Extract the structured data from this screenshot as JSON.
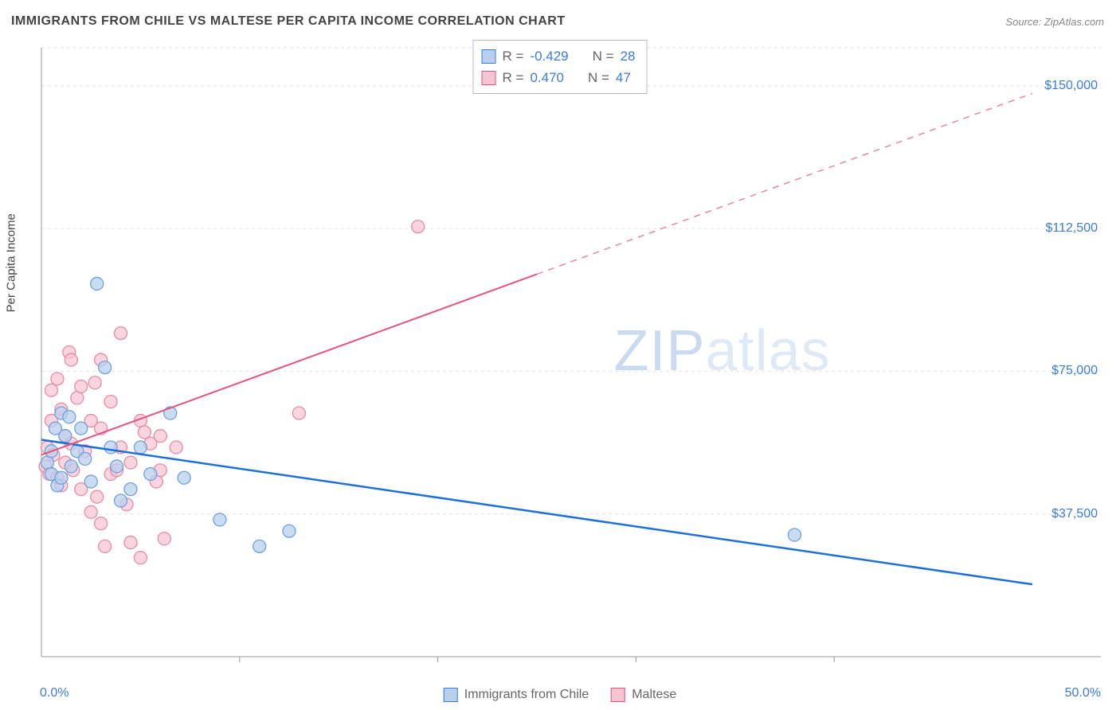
{
  "title": "IMMIGRANTS FROM CHILE VS MALTESE PER CAPITA INCOME CORRELATION CHART",
  "source": "Source: ZipAtlas.com",
  "ylabel": "Per Capita Income",
  "watermark_prefix": "ZIP",
  "watermark_suffix": "atlas",
  "chart": {
    "type": "scatter",
    "background_color": "#ffffff",
    "grid_color": "#e3e3e3",
    "axis_color": "#999999",
    "xlim": [
      0,
      50
    ],
    "ylim": [
      0,
      160000
    ],
    "xticks": [
      {
        "v": 0,
        "label": "0.0%"
      },
      {
        "v": 50,
        "label": "50.0%"
      }
    ],
    "xminor": [
      10,
      20,
      30,
      40
    ],
    "yticks": [
      {
        "v": 37500,
        "label": "$37,500"
      },
      {
        "v": 75000,
        "label": "$75,000"
      },
      {
        "v": 112500,
        "label": "$112,500"
      },
      {
        "v": 150000,
        "label": "$150,000"
      }
    ],
    "legend_top": [
      {
        "swatch_fill": "#b8d0ee",
        "swatch_stroke": "#3b7dd8",
        "r_label": "R = ",
        "r_val": "-0.429",
        "n_label": "N = ",
        "n_val": "28"
      },
      {
        "swatch_fill": "#f6c5d2",
        "swatch_stroke": "#e6537b",
        "r_label": "R = ",
        "r_val": " 0.470",
        "n_label": "N = ",
        "n_val": "47"
      }
    ],
    "legend_bottom": [
      {
        "swatch_fill": "#b8d0ee",
        "swatch_stroke": "#3b7dd8",
        "label": "Immigrants from Chile"
      },
      {
        "swatch_fill": "#f6c5d2",
        "swatch_stroke": "#e6537b",
        "label": "Maltese"
      }
    ],
    "series": [
      {
        "name": "chile",
        "marker_fill": "#b8d0ee",
        "marker_stroke": "#6fa0dd",
        "marker_r": 8,
        "marker_opacity": 0.75,
        "trend": {
          "x1": 0,
          "y1": 57000,
          "x2": 50,
          "y2": 19000,
          "solid_to_x": 50,
          "color": "#1f6fd8",
          "width": 2.5
        },
        "points": [
          {
            "x": 0.3,
            "y": 51000
          },
          {
            "x": 0.5,
            "y": 48000
          },
          {
            "x": 0.5,
            "y": 54000
          },
          {
            "x": 0.7,
            "y": 60000
          },
          {
            "x": 0.8,
            "y": 45000
          },
          {
            "x": 1.0,
            "y": 47000
          },
          {
            "x": 1.0,
            "y": 64000
          },
          {
            "x": 1.2,
            "y": 58000
          },
          {
            "x": 1.4,
            "y": 63000
          },
          {
            "x": 1.5,
            "y": 50000
          },
          {
            "x": 1.8,
            "y": 54000
          },
          {
            "x": 2.0,
            "y": 60000
          },
          {
            "x": 2.2,
            "y": 52000
          },
          {
            "x": 2.5,
            "y": 46000
          },
          {
            "x": 2.8,
            "y": 98000
          },
          {
            "x": 3.2,
            "y": 76000
          },
          {
            "x": 3.5,
            "y": 55000
          },
          {
            "x": 3.8,
            "y": 50000
          },
          {
            "x": 4.0,
            "y": 41000
          },
          {
            "x": 4.5,
            "y": 44000
          },
          {
            "x": 5.0,
            "y": 55000
          },
          {
            "x": 5.5,
            "y": 48000
          },
          {
            "x": 6.5,
            "y": 64000
          },
          {
            "x": 7.2,
            "y": 47000
          },
          {
            "x": 9.0,
            "y": 36000
          },
          {
            "x": 11.0,
            "y": 29000
          },
          {
            "x": 12.5,
            "y": 33000
          },
          {
            "x": 38.0,
            "y": 32000
          }
        ]
      },
      {
        "name": "maltese",
        "marker_fill": "#f6c5d2",
        "marker_stroke": "#e88aa4",
        "marker_r": 8,
        "marker_opacity": 0.72,
        "trend": {
          "x1": 0,
          "y1": 53000,
          "x2": 50,
          "y2": 148000,
          "solid_to_x": 25,
          "color": "#e6537b",
          "width": 2
        },
        "points": [
          {
            "x": 0.2,
            "y": 50000
          },
          {
            "x": 0.3,
            "y": 55000
          },
          {
            "x": 0.4,
            "y": 48000
          },
          {
            "x": 0.5,
            "y": 62000
          },
          {
            "x": 0.5,
            "y": 70000
          },
          {
            "x": 0.6,
            "y": 53000
          },
          {
            "x": 0.8,
            "y": 47000
          },
          {
            "x": 0.8,
            "y": 73000
          },
          {
            "x": 1.0,
            "y": 65000
          },
          {
            "x": 1.0,
            "y": 45000
          },
          {
            "x": 1.2,
            "y": 58000
          },
          {
            "x": 1.2,
            "y": 51000
          },
          {
            "x": 1.4,
            "y": 80000
          },
          {
            "x": 1.5,
            "y": 56000
          },
          {
            "x": 1.5,
            "y": 78000
          },
          {
            "x": 1.6,
            "y": 49000
          },
          {
            "x": 1.8,
            "y": 68000
          },
          {
            "x": 2.0,
            "y": 44000
          },
          {
            "x": 2.0,
            "y": 71000
          },
          {
            "x": 2.2,
            "y": 54000
          },
          {
            "x": 2.5,
            "y": 38000
          },
          {
            "x": 2.5,
            "y": 62000
          },
          {
            "x": 2.7,
            "y": 72000
          },
          {
            "x": 2.8,
            "y": 42000
          },
          {
            "x": 3.0,
            "y": 35000
          },
          {
            "x": 3.0,
            "y": 60000
          },
          {
            "x": 3.0,
            "y": 78000
          },
          {
            "x": 3.2,
            "y": 29000
          },
          {
            "x": 3.5,
            "y": 48000
          },
          {
            "x": 3.5,
            "y": 67000
          },
          {
            "x": 3.8,
            "y": 49000
          },
          {
            "x": 4.0,
            "y": 85000
          },
          {
            "x": 4.0,
            "y": 55000
          },
          {
            "x": 4.3,
            "y": 40000
          },
          {
            "x": 4.5,
            "y": 51000
          },
          {
            "x": 4.5,
            "y": 30000
          },
          {
            "x": 5.0,
            "y": 62000
          },
          {
            "x": 5.0,
            "y": 26000
          },
          {
            "x": 5.2,
            "y": 59000
          },
          {
            "x": 5.5,
            "y": 56000
          },
          {
            "x": 5.8,
            "y": 46000
          },
          {
            "x": 6.0,
            "y": 58000
          },
          {
            "x": 6.0,
            "y": 49000
          },
          {
            "x": 6.2,
            "y": 31000
          },
          {
            "x": 6.8,
            "y": 55000
          },
          {
            "x": 13.0,
            "y": 64000
          },
          {
            "x": 19.0,
            "y": 113000
          }
        ]
      }
    ]
  }
}
